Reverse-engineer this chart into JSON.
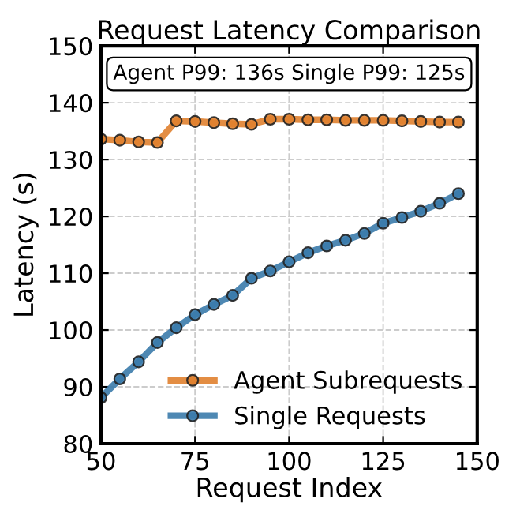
{
  "chart_data": {
    "type": "line",
    "title": "Request Latency Comparison",
    "xlabel": "Request Index",
    "ylabel": "Latency (s)",
    "x": [
      50,
      55,
      60,
      65,
      70,
      75,
      80,
      85,
      90,
      95,
      100,
      105,
      110,
      115,
      120,
      125,
      130,
      135,
      140,
      145
    ],
    "series": [
      {
        "name": "Agent Subrequests",
        "color": "#e0812f",
        "values": [
          133.6,
          133.4,
          133.1,
          133.0,
          136.8,
          136.7,
          136.5,
          136.3,
          136.2,
          137.1,
          137.1,
          137.0,
          137.0,
          136.9,
          136.9,
          136.9,
          136.8,
          136.7,
          136.6,
          136.6
        ]
      },
      {
        "name": "Single Requests",
        "color": "#3b7bab",
        "values": [
          88.1,
          91.4,
          94.4,
          97.8,
          100.4,
          102.7,
          104.5,
          106.1,
          109.1,
          110.4,
          112.0,
          113.6,
          114.8,
          115.8,
          117.0,
          118.8,
          119.8,
          120.9,
          122.3,
          124.0
        ]
      }
    ],
    "annotations": [
      "Agent P99: 136s Single P99: 125s"
    ],
    "xlim": [
      50,
      150
    ],
    "xticks": [
      50,
      75,
      100,
      125,
      150
    ],
    "ylim": [
      80,
      150
    ],
    "yticks": [
      80,
      90,
      100,
      110,
      120,
      130,
      140,
      150
    ],
    "grid": true,
    "legend": "bottom right",
    "marker": "circle",
    "line_style": "solid"
  }
}
